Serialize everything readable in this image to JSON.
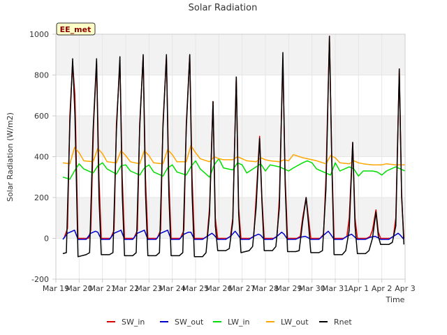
{
  "chart_data": {
    "type": "line",
    "title": "Solar Radiation",
    "xlabel": "Time",
    "ylabel": "Solar Radiation (W/m2)",
    "ylim": [
      -200,
      1000
    ],
    "yticks": [
      -200,
      0,
      200,
      400,
      600,
      800,
      1000
    ],
    "xlim": [
      0,
      15
    ],
    "xticks": [
      {
        "t": 0,
        "label": "Mar 19"
      },
      {
        "t": 1,
        "label": "Mar 20"
      },
      {
        "t": 2,
        "label": "Mar 21"
      },
      {
        "t": 3,
        "label": "Mar 22"
      },
      {
        "t": 4,
        "label": "Mar 23"
      },
      {
        "t": 5,
        "label": "Mar 24"
      },
      {
        "t": 6,
        "label": "Mar 25"
      },
      {
        "t": 7,
        "label": "Mar 26"
      },
      {
        "t": 8,
        "label": "Mar 27"
      },
      {
        "t": 9,
        "label": "Mar 28"
      },
      {
        "t": 10,
        "label": "Mar 29"
      },
      {
        "t": 11,
        "label": "Mar 30"
      },
      {
        "t": 12,
        "label": "Mar 31"
      },
      {
        "t": 13,
        "label": "Apr 1"
      },
      {
        "t": 14,
        "label": "Apr 2"
      },
      {
        "t": 15,
        "label": "Apr 3"
      }
    ],
    "grid": true,
    "legend_position": "bottom",
    "annotation": "EE_met",
    "series": [
      {
        "name": "SW_in",
        "color": "#dd0000",
        "x": [
          0.35,
          0.5,
          0.6,
          0.72,
          0.82,
          0.95,
          1.4,
          1.5,
          1.62,
          1.75,
          1.85,
          1.95,
          2.35,
          2.5,
          2.6,
          2.75,
          2.85,
          2.95,
          3.35,
          3.5,
          3.6,
          3.75,
          3.85,
          3.95,
          4.35,
          4.5,
          4.6,
          4.75,
          4.85,
          4.95,
          5.35,
          5.5,
          5.6,
          5.75,
          5.85,
          5.95,
          6.35,
          6.5,
          6.6,
          6.75,
          6.85,
          6.95,
          7.35,
          7.5,
          7.6,
          7.75,
          7.85,
          7.95,
          8.35,
          8.5,
          8.6,
          8.75,
          8.85,
          8.95,
          9.35,
          9.5,
          9.6,
          9.75,
          9.85,
          9.95,
          10.35,
          10.5,
          10.6,
          10.75,
          10.85,
          10.95,
          11.35,
          11.5,
          11.6,
          11.75,
          11.85,
          11.95,
          12.35,
          12.5,
          12.6,
          12.75,
          12.85,
          12.95,
          13.35,
          13.5,
          13.6,
          13.75,
          13.85,
          13.95,
          14.35,
          14.5,
          14.6,
          14.75,
          14.85,
          14.95
        ],
        "y": [
          0,
          50,
          600,
          860,
          700,
          0,
          0,
          40,
          560,
          860,
          300,
          0,
          0,
          40,
          560,
          860,
          300,
          0,
          0,
          40,
          560,
          890,
          300,
          0,
          0,
          40,
          560,
          890,
          300,
          0,
          0,
          40,
          560,
          900,
          300,
          0,
          0,
          10,
          150,
          670,
          100,
          0,
          0,
          10,
          100,
          790,
          150,
          0,
          0,
          10,
          200,
          500,
          200,
          0,
          0,
          10,
          200,
          870,
          300,
          0,
          0,
          10,
          100,
          200,
          100,
          0,
          0,
          20,
          300,
          990,
          400,
          0,
          0,
          10,
          100,
          470,
          100,
          0,
          0,
          10,
          40,
          140,
          30,
          0,
          0,
          10,
          100,
          830,
          200,
          0
        ]
      },
      {
        "name": "SW_out",
        "color": "#0000cc",
        "x": [
          0.3,
          0.5,
          0.7,
          0.8,
          0.95,
          1.3,
          1.5,
          1.7,
          1.8,
          1.95,
          2.3,
          2.5,
          2.7,
          2.8,
          2.95,
          3.3,
          3.5,
          3.7,
          3.8,
          3.95,
          4.3,
          4.5,
          4.7,
          4.8,
          4.95,
          5.3,
          5.5,
          5.7,
          5.8,
          5.95,
          6.3,
          6.5,
          6.7,
          6.8,
          6.95,
          7.3,
          7.5,
          7.7,
          7.8,
          7.95,
          8.3,
          8.5,
          8.7,
          8.8,
          8.95,
          9.3,
          9.5,
          9.7,
          9.8,
          9.95,
          10.3,
          10.5,
          10.7,
          10.8,
          10.95,
          11.3,
          11.5,
          11.7,
          11.8,
          11.95,
          12.3,
          12.5,
          12.7,
          12.8,
          12.95,
          13.3,
          13.5,
          13.7,
          13.8,
          13.95,
          14.3,
          14.5,
          14.7,
          14.8,
          14.95
        ],
        "y": [
          -5,
          25,
          35,
          40,
          -5,
          -5,
          25,
          35,
          30,
          -5,
          -5,
          25,
          35,
          40,
          -5,
          -5,
          25,
          35,
          40,
          -5,
          -5,
          25,
          35,
          40,
          -5,
          -5,
          20,
          30,
          30,
          -5,
          -5,
          10,
          25,
          15,
          -5,
          -5,
          10,
          35,
          20,
          -5,
          -5,
          10,
          20,
          15,
          -5,
          -5,
          10,
          30,
          20,
          -5,
          -5,
          5,
          10,
          5,
          -5,
          -5,
          15,
          35,
          20,
          -5,
          -5,
          10,
          20,
          10,
          -5,
          -5,
          5,
          10,
          5,
          -5,
          -5,
          10,
          25,
          15,
          -5
        ]
      },
      {
        "name": "LW_in",
        "color": "#00dd00",
        "x": [
          0.3,
          0.6,
          0.8,
          1.0,
          1.2,
          1.6,
          1.8,
          2.0,
          2.2,
          2.6,
          2.8,
          3.0,
          3.2,
          3.6,
          3.8,
          4.0,
          4.2,
          4.6,
          4.8,
          5.0,
          5.2,
          5.6,
          5.8,
          6.0,
          6.2,
          6.6,
          6.8,
          7.0,
          7.2,
          7.6,
          7.8,
          8.0,
          8.2,
          8.6,
          8.8,
          9.0,
          9.2,
          9.6,
          9.8,
          10.0,
          10.2,
          10.6,
          10.8,
          11.0,
          11.2,
          11.6,
          11.8,
          12.0,
          12.2,
          12.6,
          12.8,
          13.0,
          13.2,
          13.6,
          13.8,
          14.0,
          14.2,
          14.6,
          14.8,
          15.0
        ],
        "y": [
          300,
          290,
          330,
          365,
          340,
          320,
          355,
          370,
          340,
          315,
          355,
          360,
          330,
          310,
          345,
          360,
          325,
          305,
          345,
          360,
          325,
          310,
          350,
          380,
          340,
          300,
          360,
          390,
          345,
          335,
          370,
          360,
          320,
          350,
          365,
          330,
          360,
          350,
          340,
          330,
          345,
          370,
          380,
          370,
          340,
          320,
          310,
          370,
          330,
          350,
          340,
          305,
          330,
          330,
          325,
          310,
          330,
          350,
          340,
          330
        ]
      },
      {
        "name": "LW_out",
        "color": "#ffa500",
        "x": [
          0.3,
          0.6,
          0.8,
          1.0,
          1.2,
          1.6,
          1.8,
          2.0,
          2.2,
          2.6,
          2.8,
          3.0,
          3.2,
          3.6,
          3.8,
          4.0,
          4.2,
          4.6,
          4.8,
          5.0,
          5.2,
          5.6,
          5.8,
          6.0,
          6.2,
          6.6,
          6.8,
          7.0,
          7.2,
          7.6,
          7.8,
          8.0,
          8.2,
          8.6,
          8.8,
          9.0,
          9.2,
          9.6,
          9.8,
          10.0,
          10.2,
          10.6,
          10.8,
          11.0,
          11.2,
          11.6,
          11.8,
          12.0,
          12.2,
          12.6,
          12.8,
          13.0,
          13.2,
          13.6,
          13.8,
          14.0,
          14.2,
          14.6,
          14.8,
          15.0
        ],
        "y": [
          370,
          365,
          445,
          420,
          380,
          375,
          440,
          415,
          375,
          370,
          430,
          405,
          375,
          365,
          430,
          405,
          370,
          365,
          435,
          410,
          375,
          375,
          455,
          420,
          390,
          375,
          400,
          390,
          385,
          385,
          400,
          390,
          380,
          375,
          395,
          385,
          380,
          375,
          385,
          380,
          410,
          395,
          390,
          385,
          380,
          365,
          405,
          395,
          370,
          365,
          380,
          370,
          365,
          360,
          360,
          360,
          365,
          360,
          360,
          360
        ]
      },
      {
        "name": "Rnet",
        "color": "#000000",
        "x": [
          0.3,
          0.45,
          0.6,
          0.72,
          0.82,
          0.95,
          1.3,
          1.45,
          1.6,
          1.75,
          1.85,
          1.95,
          2.3,
          2.45,
          2.6,
          2.75,
          2.85,
          2.95,
          3.3,
          3.45,
          3.6,
          3.75,
          3.85,
          3.95,
          4.3,
          4.45,
          4.6,
          4.75,
          4.85,
          4.95,
          5.3,
          5.45,
          5.6,
          5.75,
          5.85,
          5.95,
          6.3,
          6.45,
          6.6,
          6.75,
          6.85,
          6.95,
          7.3,
          7.45,
          7.6,
          7.75,
          7.85,
          7.95,
          8.3,
          8.45,
          8.6,
          8.75,
          8.85,
          8.95,
          9.3,
          9.45,
          9.6,
          9.75,
          9.85,
          9.95,
          10.3,
          10.45,
          10.6,
          10.75,
          10.85,
          10.95,
          11.3,
          11.45,
          11.6,
          11.75,
          11.85,
          11.95,
          12.3,
          12.45,
          12.6,
          12.75,
          12.85,
          12.95,
          13.3,
          13.45,
          13.6,
          13.75,
          13.85,
          13.95,
          14.3,
          14.45,
          14.6,
          14.75,
          14.85,
          14.95
        ],
        "y": [
          -75,
          -70,
          560,
          880,
          600,
          -90,
          -80,
          -70,
          530,
          880,
          200,
          -80,
          -80,
          -70,
          530,
          890,
          220,
          -85,
          -85,
          -70,
          540,
          900,
          220,
          -85,
          -85,
          -70,
          540,
          900,
          220,
          -85,
          -85,
          -70,
          540,
          900,
          220,
          -90,
          -90,
          -70,
          120,
          670,
          60,
          -60,
          -60,
          -50,
          80,
          790,
          120,
          -70,
          -60,
          -40,
          150,
          490,
          180,
          -60,
          -60,
          -40,
          150,
          910,
          260,
          -65,
          -65,
          -60,
          80,
          200,
          70,
          -70,
          -70,
          -60,
          240,
          990,
          380,
          -80,
          -80,
          -60,
          40,
          470,
          60,
          -75,
          -75,
          -60,
          0,
          130,
          10,
          -30,
          -30,
          -20,
          60,
          830,
          220,
          -30
        ]
      }
    ]
  }
}
